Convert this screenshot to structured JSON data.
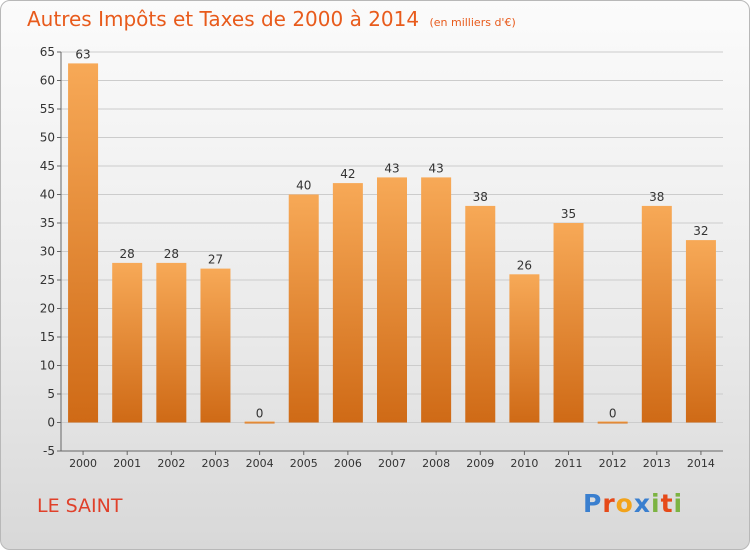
{
  "title": "Autres Impôts et Taxes de 2000 à 2014",
  "unit": "(en milliers d'€)",
  "place": "LE SAINT",
  "logo": {
    "letters": [
      "P",
      "r",
      "o",
      "x",
      "i",
      "t",
      "i"
    ],
    "colors": [
      "#3a7fcf",
      "#e64a19",
      "#f2a31b",
      "#3a7fcf",
      "#7cb342",
      "#e64a19",
      "#7cb342"
    ]
  },
  "colors": {
    "bar_top": "#f7a957",
    "bar_bottom": "#cf6a16",
    "grid": "#cccccc",
    "title": "#e85b1c"
  },
  "chart_data": {
    "type": "bar",
    "categories": [
      "2000",
      "2001",
      "2002",
      "2003",
      "2004",
      "2005",
      "2006",
      "2007",
      "2008",
      "2009",
      "2010",
      "2011",
      "2012",
      "2013",
      "2014"
    ],
    "values": [
      63,
      28,
      28,
      27,
      0,
      40,
      42,
      43,
      43,
      38,
      26,
      35,
      0,
      38,
      32
    ],
    "ylim": [
      -5,
      65
    ],
    "yticks": [
      -5,
      0,
      5,
      10,
      15,
      20,
      25,
      30,
      35,
      40,
      45,
      50,
      55,
      60,
      65
    ],
    "grid": true,
    "legend": "none"
  }
}
